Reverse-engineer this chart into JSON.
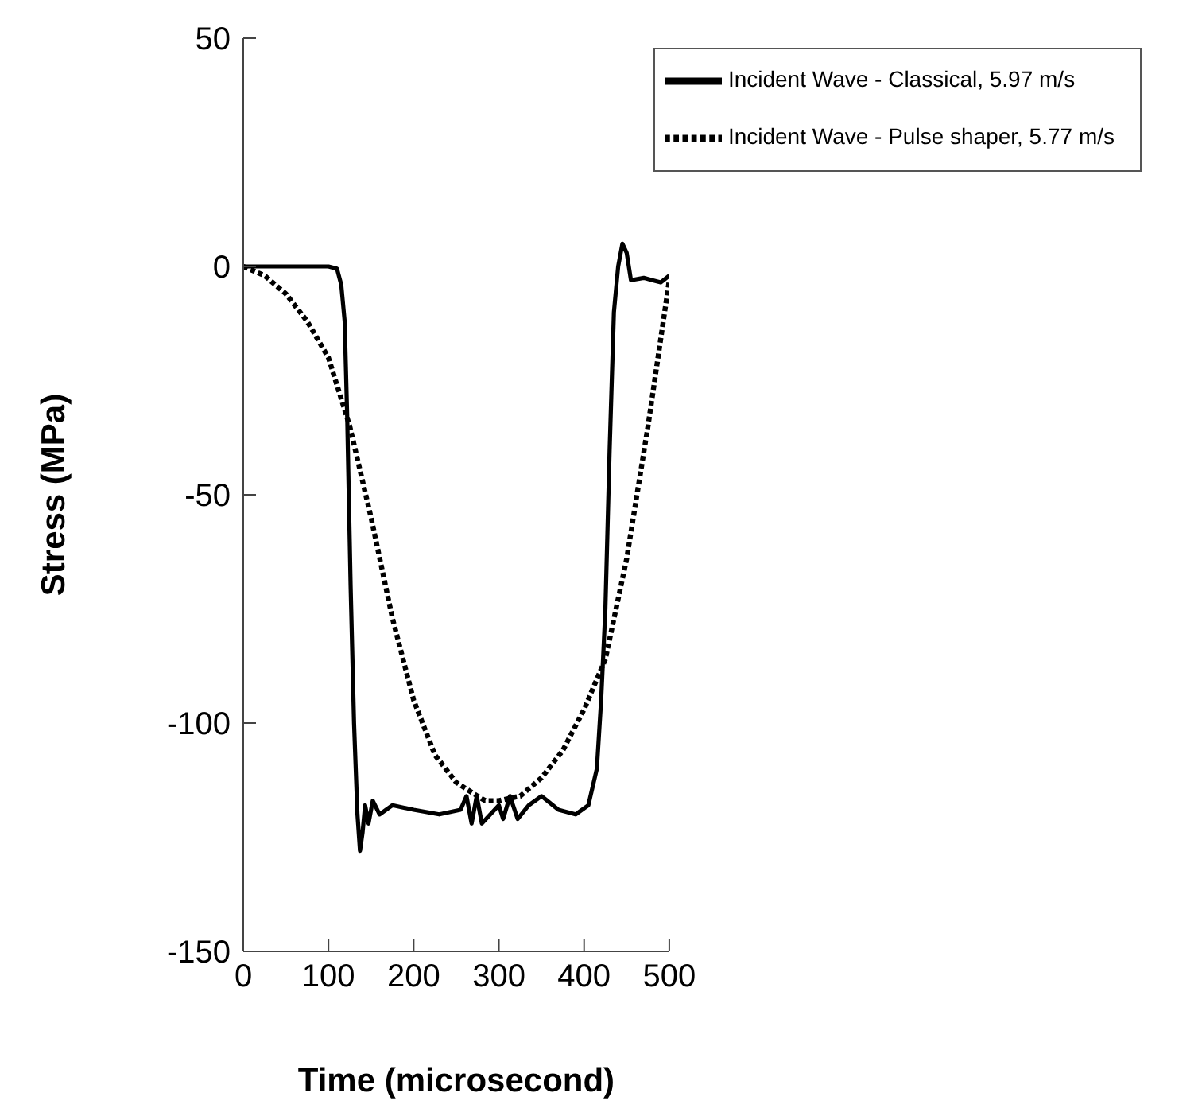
{
  "chart_data": {
    "type": "line",
    "xlabel": "Time (microsecond)",
    "ylabel": "Stress (MPa)",
    "xlim": [
      0,
      500
    ],
    "xticks": [
      0,
      100,
      200,
      300,
      400,
      500
    ],
    "ylim": [
      -150,
      50
    ],
    "yticks": [
      -150,
      -100,
      -50,
      0,
      50
    ],
    "legend": "top right",
    "series": [
      {
        "name": "Incident Wave - Classical, 5.97 m/s",
        "color": "#000000",
        "line_style": "solid",
        "x": [
          0,
          25,
          50,
          75,
          100,
          110,
          115,
          119,
          122,
          126,
          130,
          134,
          137,
          140,
          143,
          147,
          152,
          160,
          175,
          200,
          230,
          255,
          262,
          268,
          274,
          280,
          290,
          300,
          305,
          313,
          322,
          335,
          350,
          370,
          390,
          405,
          415,
          420,
          425,
          430,
          435,
          440,
          445,
          450,
          455,
          470,
          480,
          490,
          500
        ],
        "values": [
          0,
          0,
          0,
          0,
          0,
          -0.5,
          -4,
          -12,
          -33,
          -70,
          -100,
          -120,
          -128,
          -124,
          -118,
          -122,
          -117,
          -120,
          -118,
          -119,
          -120,
          -119,
          -116,
          -122,
          -116,
          -122,
          -120,
          -118,
          -121,
          -116,
          -121,
          -118,
          -116,
          -119,
          -120,
          -118,
          -110,
          -95,
          -75,
          -40,
          -10,
          0,
          5,
          3,
          -3,
          -2.5,
          -3,
          -3.5,
          -2
        ]
      },
      {
        "name": "Incident Wave - Pulse shaper, 5.77 m/s",
        "color": "#000000",
        "line_style": "dotted",
        "x": [
          0,
          25,
          50,
          75,
          100,
          125,
          150,
          175,
          200,
          225,
          250,
          275,
          284,
          300,
          325,
          350,
          375,
          400,
          425,
          450,
          475,
          500
        ],
        "values": [
          0,
          -2,
          -6,
          -12,
          -20,
          -35,
          -55,
          -77,
          -95,
          -107,
          -113,
          -116,
          -117,
          -117,
          -116,
          -112,
          -106,
          -97,
          -86,
          -64,
          -35,
          -3
        ]
      }
    ]
  }
}
